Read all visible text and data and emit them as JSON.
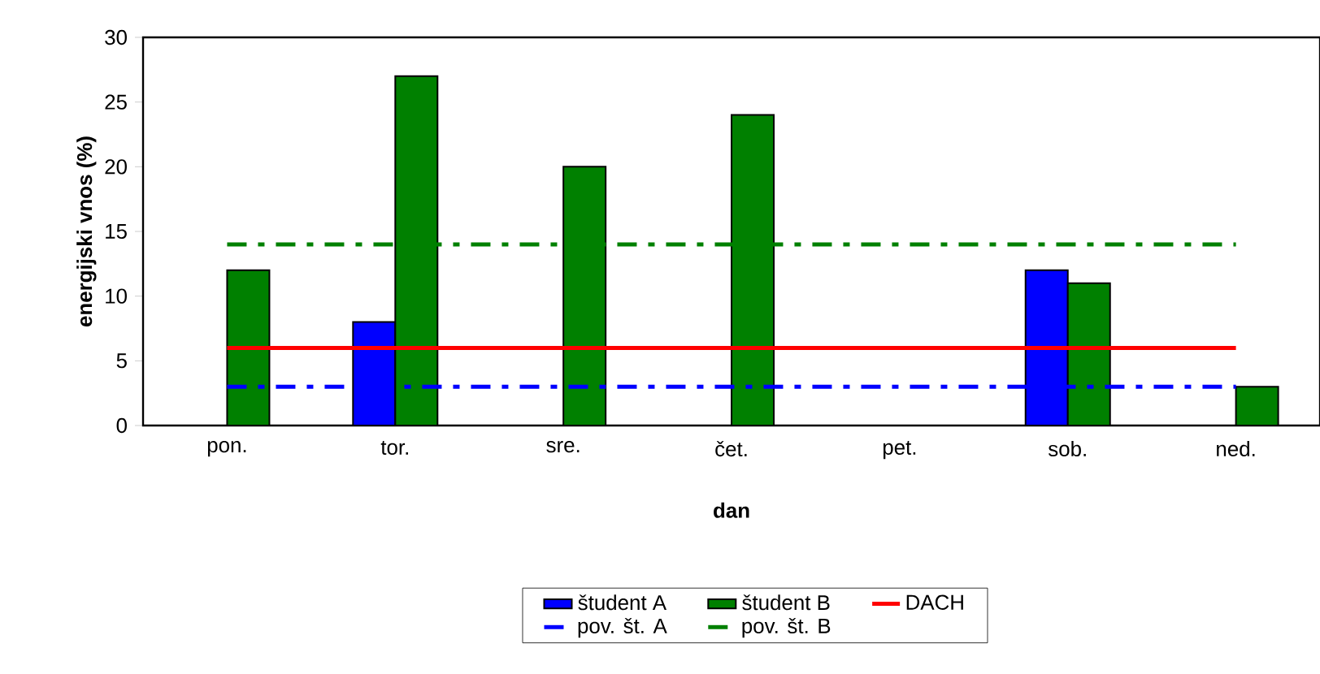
{
  "chart_data": {
    "type": "bar",
    "xlabel": "dan",
    "ylabel": "energijski vnos (%)",
    "categories": [
      "pon.",
      "tor.",
      "sre.",
      "čet.",
      "pet.",
      "sob.",
      "ned."
    ],
    "series": [
      {
        "name": "študent A",
        "color": "#0000ff",
        "values": [
          null,
          8,
          null,
          null,
          null,
          12,
          null
        ]
      },
      {
        "name": "študent B",
        "color": "#008000",
        "values": [
          12,
          27,
          20,
          24,
          null,
          11,
          3
        ]
      },
      {
        "name": "DACH",
        "type": "line",
        "color": "#ff0000",
        "line_style": "solid",
        "values": [
          6,
          6,
          6,
          6,
          6,
          6,
          6
        ]
      },
      {
        "name": "pov. št. A",
        "type": "line",
        "color": "#0000ff",
        "line_style": "dashed",
        "values": [
          3,
          3,
          3,
          3,
          3,
          3,
          3
        ]
      },
      {
        "name": "pov. št. B",
        "type": "line",
        "color": "#008000",
        "line_style": "dashed",
        "values": [
          14,
          14,
          14,
          14,
          14,
          14,
          14
        ]
      }
    ],
    "ylim": [
      0,
      30
    ],
    "yticks": [
      0,
      5,
      10,
      15,
      20,
      25,
      30
    ],
    "grid": false,
    "legend": "bottom"
  }
}
